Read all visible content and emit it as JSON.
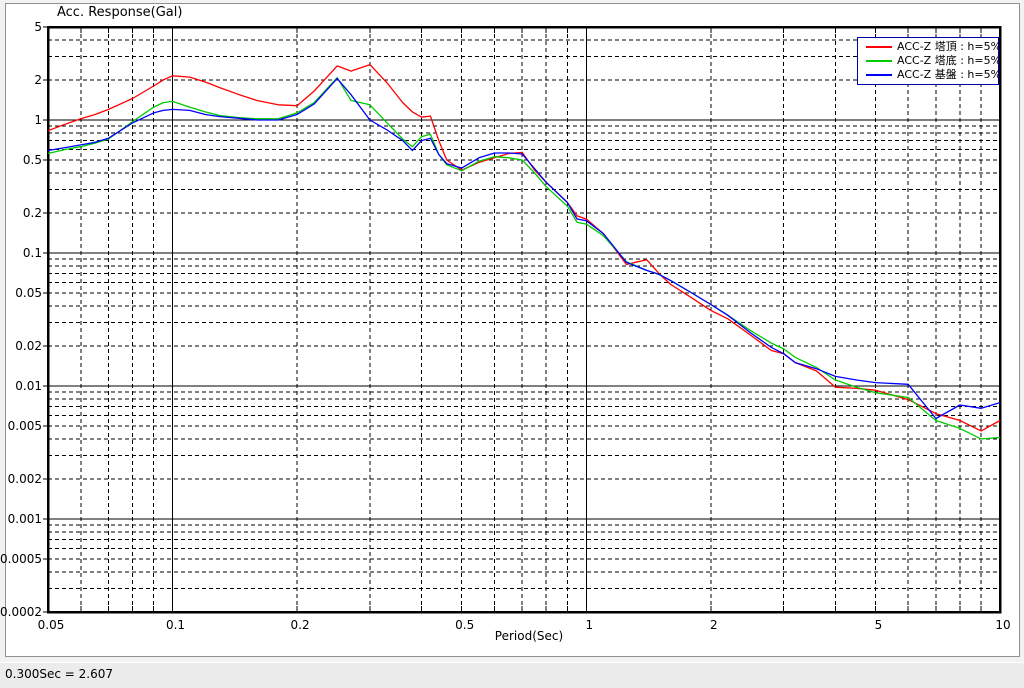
{
  "status_bar": {
    "readout": "0.300Sec = 2.607"
  },
  "chart_data": {
    "type": "line",
    "title": "Acc. Response(Gal)",
    "xlabel": "Period(Sec)",
    "ylabel": "Acc. Response(Gal)",
    "x_scale": "log",
    "y_scale": "log",
    "xlim": [
      0.05,
      10
    ],
    "ylim": [
      0.0002,
      5
    ],
    "x_ticks": [
      "0.05",
      "0.1",
      "0.2",
      "0.5",
      "1",
      "2",
      "5",
      "10"
    ],
    "y_ticks": [
      "5",
      "2",
      "1",
      "0.5",
      "0.2",
      "0.1",
      "0.05",
      "0.02",
      "0.01",
      "0.005",
      "0.002",
      "0.001",
      "0.0005",
      "0.0002"
    ],
    "grid": "decade lines solid, log minors dashed",
    "legend_position": "top-right",
    "periods": [
      0.05,
      0.055,
      0.06,
      0.065,
      0.07,
      0.08,
      0.09,
      0.095,
      0.1,
      0.11,
      0.12,
      0.13,
      0.145,
      0.16,
      0.18,
      0.2,
      0.22,
      0.25,
      0.27,
      0.3,
      0.33,
      0.36,
      0.38,
      0.4,
      0.42,
      0.44,
      0.46,
      0.5,
      0.55,
      0.6,
      0.65,
      0.7,
      0.75,
      0.8,
      0.9,
      0.95,
      1.0,
      1.1,
      1.25,
      1.4,
      1.5,
      1.6,
      1.8,
      2.0,
      2.2,
      2.5,
      2.8,
      3.0,
      3.2,
      3.6,
      4.0,
      4.5,
      5.0,
      6.0,
      7.0,
      8.0,
      9.0,
      10.0
    ],
    "series": [
      {
        "name": "ACC-Z 塔頂 : h=5%",
        "color": "#ff0000",
        "values": [
          0.83,
          0.93,
          1.02,
          1.1,
          1.2,
          1.45,
          1.8,
          2.0,
          2.15,
          2.1,
          1.93,
          1.75,
          1.55,
          1.4,
          1.3,
          1.28,
          1.65,
          2.55,
          2.33,
          2.607,
          1.9,
          1.35,
          1.15,
          1.05,
          1.07,
          0.7,
          0.5,
          0.42,
          0.48,
          0.52,
          0.56,
          0.57,
          0.42,
          0.34,
          0.24,
          0.19,
          0.18,
          0.14,
          0.082,
          0.089,
          0.07,
          0.058,
          0.046,
          0.037,
          0.032,
          0.024,
          0.0185,
          0.0175,
          0.015,
          0.013,
          0.0098,
          0.0096,
          0.0093,
          0.0079,
          0.0062,
          0.0055,
          0.0046,
          0.0055
        ]
      },
      {
        "name": "ACC-Z 塔底 : h=5%",
        "color": "#00cc00",
        "values": [
          0.56,
          0.6,
          0.63,
          0.67,
          0.72,
          0.97,
          1.25,
          1.35,
          1.38,
          1.25,
          1.15,
          1.08,
          1.04,
          1.02,
          1.02,
          1.13,
          1.35,
          2.08,
          1.4,
          1.3,
          0.95,
          0.72,
          0.63,
          0.75,
          0.78,
          0.55,
          0.46,
          0.415,
          0.49,
          0.53,
          0.52,
          0.5,
          0.4,
          0.315,
          0.225,
          0.17,
          0.165,
          0.135,
          0.086,
          0.074,
          0.069,
          0.062,
          0.05,
          0.041,
          0.034,
          0.026,
          0.021,
          0.019,
          0.0164,
          0.0138,
          0.0111,
          0.0098,
          0.0089,
          0.0082,
          0.0055,
          0.0048,
          0.004,
          0.0041
        ]
      },
      {
        "name": "ACC-Z 基盤 : h=5%",
        "color": "#0000ff",
        "values": [
          0.59,
          0.62,
          0.65,
          0.68,
          0.73,
          0.95,
          1.13,
          1.18,
          1.2,
          1.18,
          1.1,
          1.06,
          1.03,
          1.0,
          1.0,
          1.1,
          1.32,
          2.05,
          1.55,
          1.0,
          0.84,
          0.7,
          0.59,
          0.7,
          0.73,
          0.55,
          0.47,
          0.435,
          0.52,
          0.565,
          0.565,
          0.555,
          0.43,
          0.34,
          0.24,
          0.18,
          0.175,
          0.14,
          0.085,
          0.074,
          0.069,
          0.062,
          0.05,
          0.041,
          0.034,
          0.025,
          0.0195,
          0.0175,
          0.015,
          0.0135,
          0.0118,
          0.0111,
          0.0106,
          0.0103,
          0.0057,
          0.0072,
          0.0068,
          0.0075
        ]
      }
    ]
  }
}
